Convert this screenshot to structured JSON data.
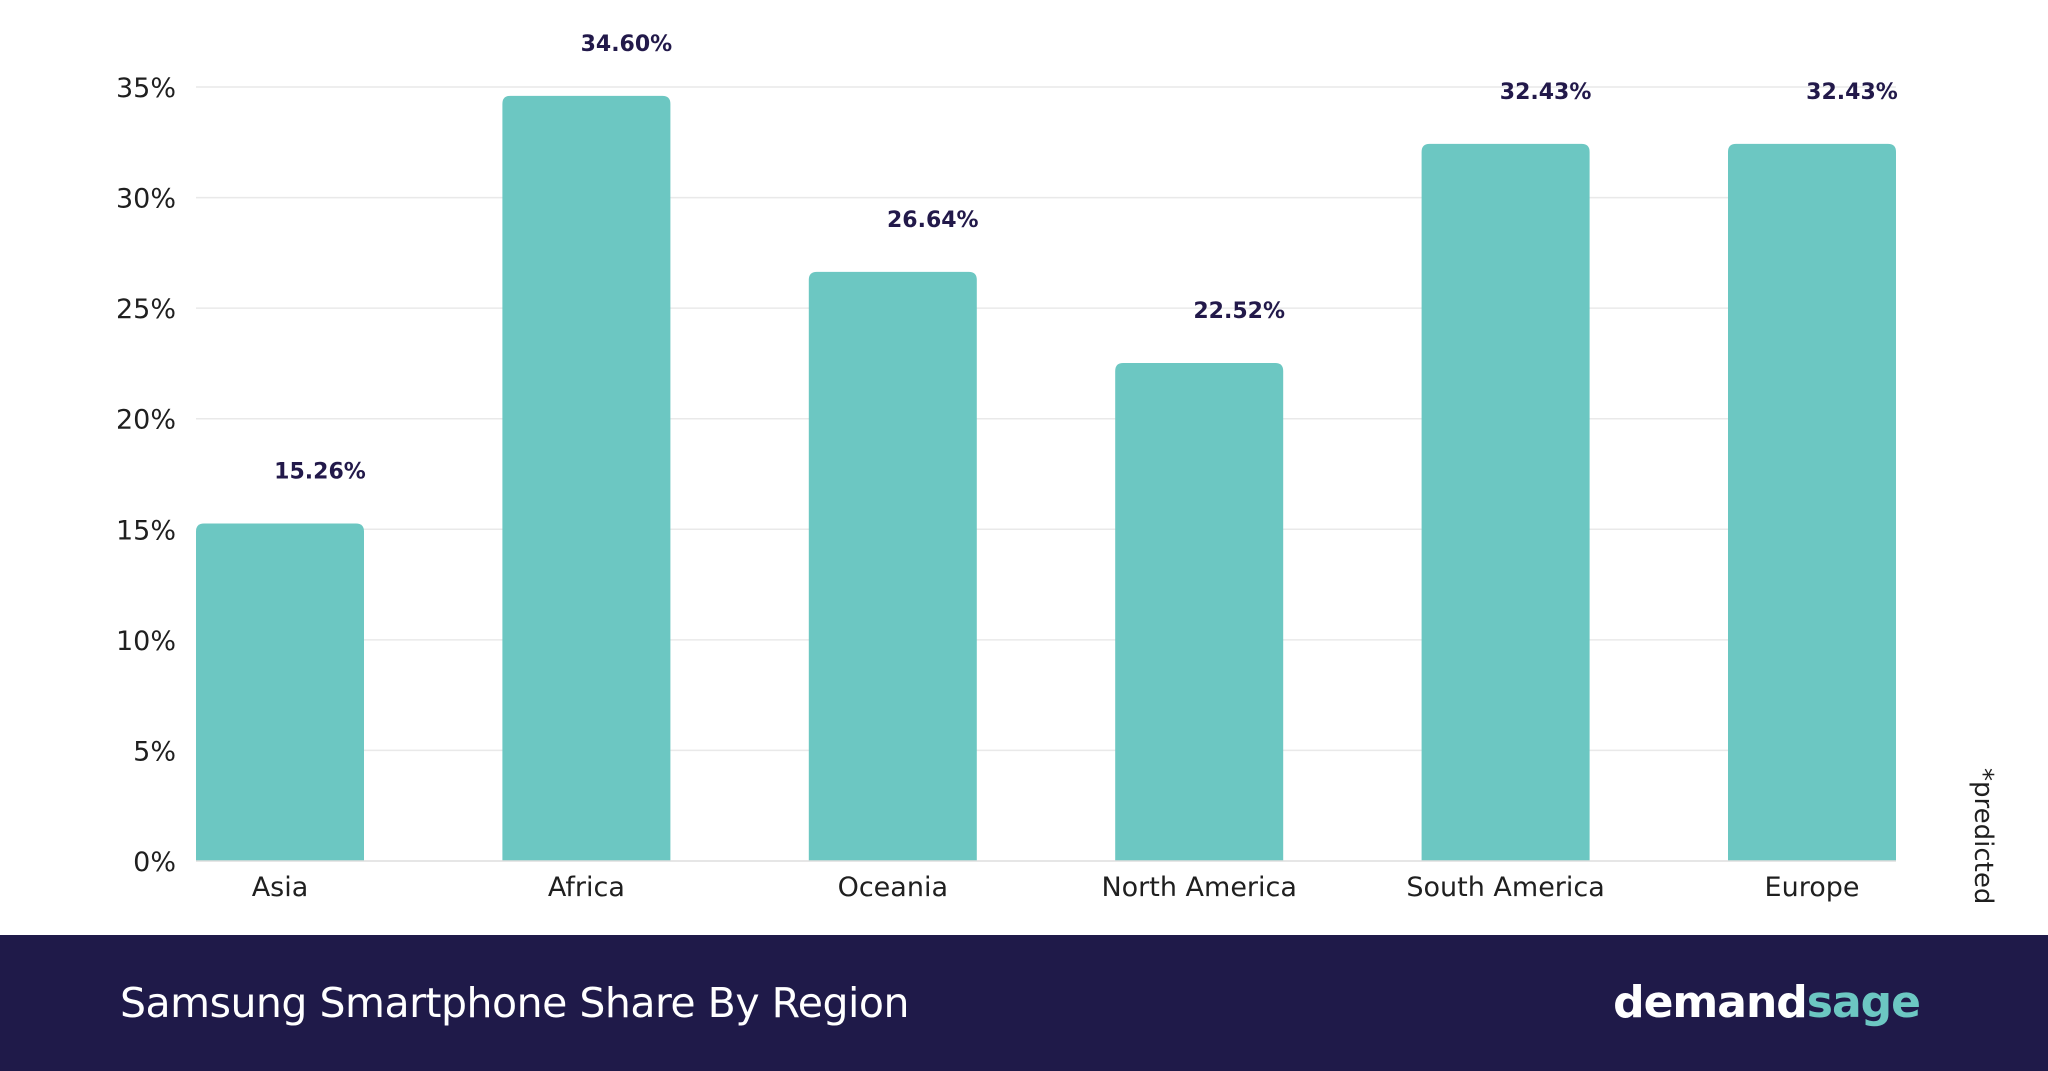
{
  "chart_data": {
    "type": "bar",
    "categories": [
      "Asia",
      "Africa",
      "Oceania",
      "North America",
      "South America",
      "Europe"
    ],
    "values": [
      15.26,
      34.6,
      26.64,
      22.52,
      32.43,
      32.43
    ],
    "data_labels": [
      "15.26%",
      "34.60%",
      "26.64%",
      "22.52%",
      "32.43%",
      "32.43%"
    ],
    "title": "Samsung Smartphone Share By Region",
    "xlabel": "",
    "ylabel": "",
    "ylim": [
      0,
      35
    ],
    "yticks": [
      0,
      5,
      10,
      15,
      20,
      25,
      30,
      35
    ],
    "ytick_labels": [
      "0%",
      "5%",
      "10%",
      "15%",
      "20%",
      "25%",
      "30%",
      "35%"
    ],
    "grid": true,
    "note": "*predicted",
    "colors": {
      "bar": "#6cc7c2",
      "grid": "#e9e9e9",
      "data_label": "#22194a",
      "footer_bg": "#1f1a49"
    }
  },
  "footer": {
    "title": "Samsung Smartphone Share By Region",
    "logo_part1": "demand",
    "logo_part2": "sage"
  }
}
